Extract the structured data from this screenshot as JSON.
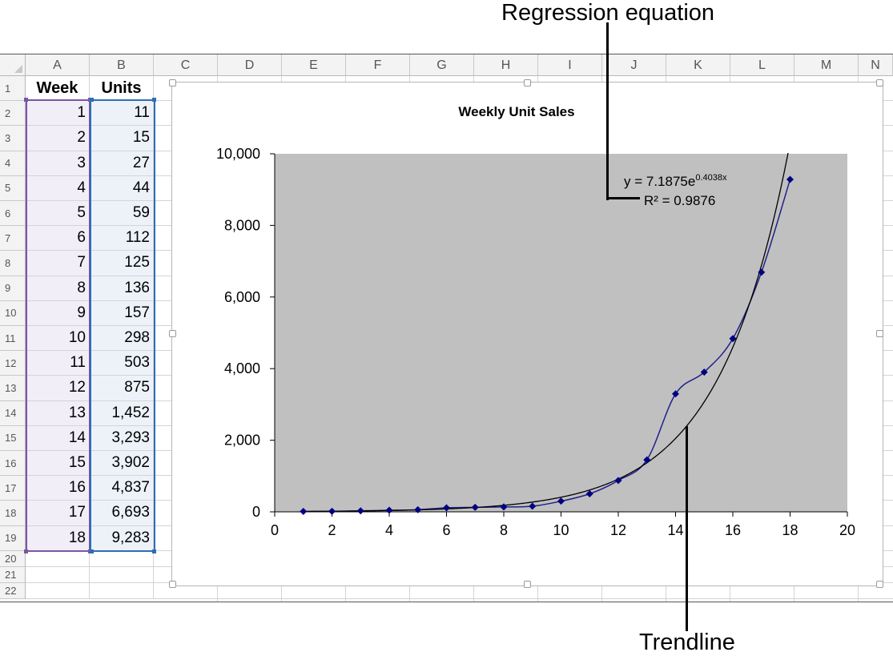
{
  "callouts": {
    "regression": "Regression equation",
    "trendline": "Trendline"
  },
  "sheet": {
    "columns": [
      "A",
      "B",
      "C",
      "D",
      "E",
      "F",
      "G",
      "H",
      "I",
      "J",
      "K",
      "L",
      "M",
      "N"
    ],
    "rows": [
      "1",
      "2",
      "3",
      "4",
      "5",
      "6",
      "7",
      "8",
      "9",
      "10",
      "11",
      "12",
      "13",
      "14",
      "15",
      "16",
      "17",
      "18",
      "19",
      "20",
      "21",
      "22"
    ],
    "headers": {
      "week": "Week",
      "units": "Units"
    },
    "weeks": [
      "1",
      "2",
      "3",
      "4",
      "5",
      "6",
      "7",
      "8",
      "9",
      "10",
      "11",
      "12",
      "13",
      "14",
      "15",
      "16",
      "17",
      "18"
    ],
    "units": [
      "11",
      "15",
      "27",
      "44",
      "59",
      "112",
      "125",
      "136",
      "157",
      "298",
      "503",
      "875",
      "1,452",
      "3,293",
      "3,902",
      "4,837",
      "6,693",
      "9,283"
    ]
  },
  "chart": {
    "equation_prefix": "y = 7.1875e",
    "equation_exponent": "0.4038x",
    "r_squared": "R² = 0.9876",
    "plot_background": "#c0c0c0",
    "series_color": "#1f1f8f",
    "marker_color": "#000080",
    "trendline_color": "#000000"
  },
  "chart_data": {
    "type": "scatter",
    "title": "Weekly Unit Sales",
    "x": [
      1,
      2,
      3,
      4,
      5,
      6,
      7,
      8,
      9,
      10,
      11,
      12,
      13,
      14,
      15,
      16,
      17,
      18
    ],
    "series": [
      {
        "values": [
          11,
          15,
          27,
          44,
          59,
          112,
          125,
          136,
          157,
          298,
          503,
          875,
          1452,
          3293,
          3902,
          4837,
          6693,
          9283
        ]
      }
    ],
    "trendline": {
      "type": "exponential",
      "a": 7.1875,
      "b": 0.4038
    },
    "xlim": [
      0,
      20
    ],
    "ylim": [
      0,
      10000
    ],
    "xticks": [
      "0",
      "2",
      "4",
      "6",
      "8",
      "10",
      "12",
      "14",
      "16",
      "18",
      "20"
    ],
    "yticks": [
      "0",
      "2,000",
      "4,000",
      "6,000",
      "8,000",
      "10,000"
    ],
    "xlabel": "",
    "ylabel": "",
    "grid": false
  }
}
